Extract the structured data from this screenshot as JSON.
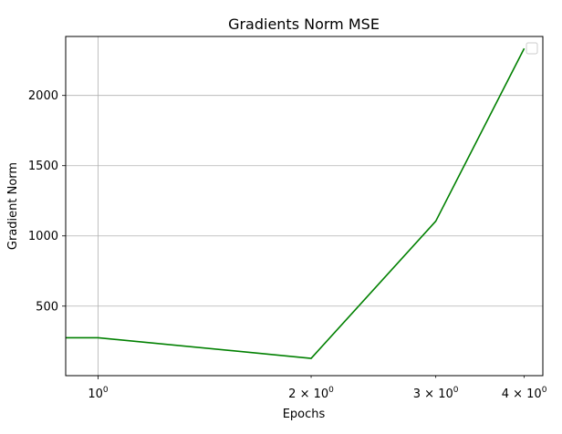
{
  "chart_data": {
    "type": "line",
    "title": "Gradients Norm MSE",
    "xlabel": "Epochs",
    "ylabel": "Gradient Norm",
    "xscale": "log",
    "grid": true,
    "legend": "top-right",
    "x_ticks": [
      {
        "value": 1,
        "base": "10",
        "exp": "0"
      },
      {
        "value": 2,
        "coef": "2",
        "base": "10",
        "exp": "0"
      },
      {
        "value": 3,
        "coef": "3",
        "base": "10",
        "exp": "0"
      },
      {
        "value": 4,
        "coef": "4",
        "base": "10",
        "exp": "0"
      }
    ],
    "y_ticks": [
      "500",
      "1000",
      "1500",
      "2000"
    ],
    "xlim": [
      0.9,
      4.25
    ],
    "ylim": [
      5,
      2420
    ],
    "series": [
      {
        "color": "#008000",
        "x": [
          0,
          1,
          2,
          3,
          4
        ],
        "y": [
          275,
          275,
          128,
          1105,
          2335
        ]
      }
    ]
  }
}
